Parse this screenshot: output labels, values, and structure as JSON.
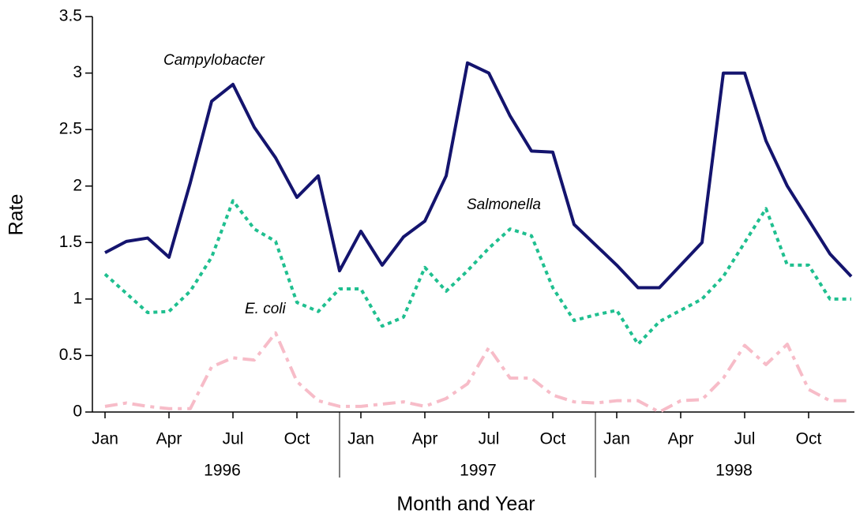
{
  "chart_data": {
    "type": "line",
    "x_label": "Month and Year",
    "y_label": "Rate",
    "categories": [
      "Jan",
      null,
      null,
      "Apr",
      null,
      null,
      "Jul",
      null,
      null,
      "Oct",
      null,
      null,
      "Jan",
      null,
      null,
      "Apr",
      null,
      null,
      "Jul",
      null,
      null,
      "Oct",
      null,
      null,
      "Jan",
      null,
      null,
      "Apr",
      null,
      null,
      "Jul",
      null,
      null,
      "Oct",
      null,
      null
    ],
    "years": [
      "1996",
      "1997",
      "1998"
    ],
    "ylim": [
      0,
      3.5
    ],
    "yticks": [
      0,
      0.5,
      1,
      1.5,
      2,
      2.5,
      3,
      3.5
    ],
    "series": [
      {
        "name": "Campylobacter",
        "color": "#14146e",
        "style": "solid",
        "values": [
          1.41,
          1.51,
          1.54,
          1.37,
          2.03,
          2.75,
          2.9,
          2.52,
          2.25,
          1.9,
          2.09,
          1.25,
          1.6,
          1.3,
          1.55,
          1.69,
          2.09,
          3.09,
          3.0,
          2.62,
          2.31,
          2.3,
          1.66,
          1.48,
          1.3,
          1.1,
          1.1,
          1.3,
          1.5,
          3.0,
          3.0,
          2.4,
          2.0,
          1.7,
          1.4,
          1.2
        ]
      },
      {
        "name": "Salmonella",
        "color": "#1fbf8f",
        "style": "dotted",
        "values": [
          1.22,
          1.05,
          0.88,
          0.89,
          1.07,
          1.37,
          1.87,
          1.62,
          1.51,
          0.97,
          0.89,
          1.09,
          1.09,
          0.76,
          0.84,
          1.28,
          1.07,
          1.25,
          1.45,
          1.62,
          1.56,
          1.1,
          0.81,
          0.86,
          0.9,
          0.6,
          0.8,
          0.9,
          1.0,
          1.2,
          1.5,
          1.8,
          1.3,
          1.3,
          1.0,
          1.0
        ]
      },
      {
        "name": "E. coli",
        "color": "#f7bcc8",
        "style": "dashdot",
        "values": [
          0.05,
          0.08,
          0.05,
          0.03,
          0.03,
          0.4,
          0.48,
          0.46,
          0.7,
          0.27,
          0.1,
          0.05,
          0.05,
          0.07,
          0.09,
          0.05,
          0.12,
          0.25,
          0.57,
          0.3,
          0.3,
          0.15,
          0.09,
          0.08,
          0.1,
          0.1,
          0.0,
          0.1,
          0.11,
          0.3,
          0.59,
          0.42,
          0.6,
          0.2,
          0.1,
          0.1
        ]
      }
    ]
  }
}
